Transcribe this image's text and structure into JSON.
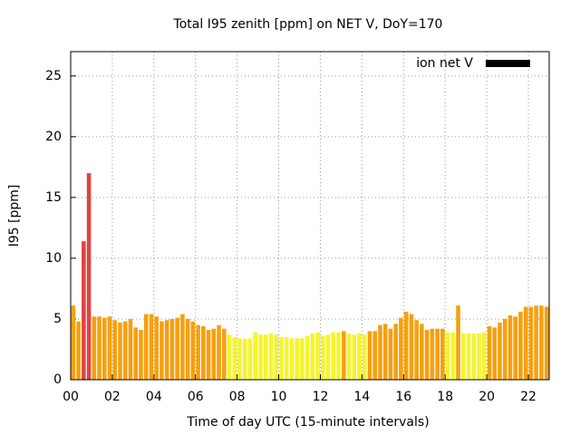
{
  "chart_data": {
    "type": "bar",
    "title": "Total I95 zenith [ppm] on NET V, DoY=170",
    "xlabel": "Time of day UTC (15-minute intervals)",
    "ylabel": "I95 [ppm]",
    "series": [
      {
        "name": "ion net V",
        "color": "#000000",
        "x": [
          0,
          0.25,
          0.5,
          0.75,
          1,
          1.25,
          1.5,
          1.75,
          2,
          2.25,
          2.5,
          2.75,
          3,
          3.25,
          3.5,
          3.75,
          4,
          4.25,
          4.5,
          4.75,
          5,
          5.25,
          5.5,
          5.75,
          6,
          6.25,
          6.5,
          6.75,
          7,
          7.25,
          7.5,
          7.75,
          8,
          8.25,
          8.5,
          8.75,
          9,
          9.25,
          9.5,
          9.75,
          10,
          10.25,
          10.5,
          10.75,
          11,
          11.25,
          11.5,
          11.75,
          12,
          12.25,
          12.5,
          12.75,
          13,
          13.25,
          13.5,
          13.75,
          14,
          14.25,
          14.5,
          14.75,
          15,
          15.25,
          15.5,
          15.75,
          16,
          16.25,
          16.5,
          16.75,
          17,
          17.25,
          17.5,
          17.75,
          18,
          18.25,
          18.5,
          18.75,
          19,
          19.25,
          19.5,
          19.75,
          20,
          20.25,
          20.5,
          20.75,
          21,
          21.25,
          21.5,
          21.75,
          22,
          22.25,
          22.5,
          22.75
        ],
        "values": [
          6.1,
          4.8,
          11.4,
          17.0,
          5.2,
          5.2,
          5.1,
          5.2,
          4.9,
          4.7,
          4.8,
          5.0,
          4.3,
          4.1,
          5.4,
          5.4,
          5.2,
          4.8,
          4.9,
          5.0,
          5.1,
          5.4,
          5.0,
          4.8,
          4.5,
          4.4,
          4.1,
          4.2,
          4.5,
          4.2,
          3.7,
          3.5,
          3.4,
          3.4,
          3.4,
          3.9,
          3.7,
          3.7,
          3.8,
          3.7,
          3.5,
          3.5,
          3.4,
          3.4,
          3.4,
          3.6,
          3.8,
          3.9,
          3.6,
          3.7,
          3.9,
          3.9,
          4.0,
          3.8,
          3.7,
          3.8,
          3.7,
          4.0,
          4.0,
          4.5,
          4.6,
          4.2,
          4.6,
          5.1,
          5.6,
          5.4,
          4.9,
          4.6,
          4.1,
          4.2,
          4.2,
          4.2,
          3.9,
          3.9,
          6.1,
          3.8,
          3.8,
          3.8,
          3.8,
          3.9,
          4.4,
          4.3,
          4.7,
          5.0,
          5.3,
          5.2,
          5.6,
          6.0,
          6.0,
          6.1,
          6.1,
          6.0
        ],
        "colors": [
          "#f5a010",
          "#f5a010",
          "#dd4444",
          "#dd4444",
          "#f5a010",
          "#f5a010",
          "#f5a010",
          "#f5a010",
          "#f5a010",
          "#f5a010",
          "#f5a010",
          "#f5a010",
          "#f5a010",
          "#f5a010",
          "#f5a010",
          "#f5a010",
          "#f5a010",
          "#f5a010",
          "#f5a010",
          "#f5a010",
          "#f5a010",
          "#f5a010",
          "#f5a010",
          "#f5a010",
          "#f5a010",
          "#f5a010",
          "#f5a010",
          "#f5a010",
          "#f5a010",
          "#f5a010",
          "#f4f430",
          "#f4f430",
          "#f4f430",
          "#f4f430",
          "#f4f430",
          "#f4f430",
          "#f4f430",
          "#f4f430",
          "#f4f430",
          "#f4f430",
          "#f4f430",
          "#f4f430",
          "#f4f430",
          "#f4f430",
          "#f4f430",
          "#f4f430",
          "#f4f430",
          "#f4f430",
          "#f4f430",
          "#f4f430",
          "#f4f430",
          "#f4f430",
          "#f5a010",
          "#f4f430",
          "#f4f430",
          "#f4f430",
          "#f4f430",
          "#f5a010",
          "#f5a010",
          "#f5a010",
          "#f5a010",
          "#f5a010",
          "#f5a010",
          "#f5a010",
          "#f5a010",
          "#f5a010",
          "#f5a010",
          "#f5a010",
          "#f5a010",
          "#f5a010",
          "#f5a010",
          "#f5a010",
          "#f4f430",
          "#f4f430",
          "#f5a010",
          "#f4f430",
          "#f4f430",
          "#f4f430",
          "#f4f430",
          "#f4f430",
          "#f5a010",
          "#f5a010",
          "#f5a010",
          "#f5a010",
          "#f5a010",
          "#f5a010",
          "#f5a010",
          "#f5a010",
          "#f5a010",
          "#f5a010",
          "#f5a010",
          "#f5a010"
        ]
      }
    ],
    "xlim": [
      0,
      23
    ],
    "xticks": [
      {
        "value": 0,
        "label": "00"
      },
      {
        "value": 2,
        "label": "02"
      },
      {
        "value": 4,
        "label": "04"
      },
      {
        "value": 6,
        "label": "06"
      },
      {
        "value": 8,
        "label": "08"
      },
      {
        "value": 10,
        "label": "10"
      },
      {
        "value": 12,
        "label": "12"
      },
      {
        "value": 14,
        "label": "14"
      },
      {
        "value": 16,
        "label": "16"
      },
      {
        "value": 18,
        "label": "18"
      },
      {
        "value": 20,
        "label": "20"
      },
      {
        "value": 22,
        "label": "22"
      }
    ],
    "ylim": [
      0,
      27
    ],
    "yticks": [
      0,
      5,
      10,
      15,
      20,
      25
    ],
    "grid": true,
    "legend": "top right"
  }
}
